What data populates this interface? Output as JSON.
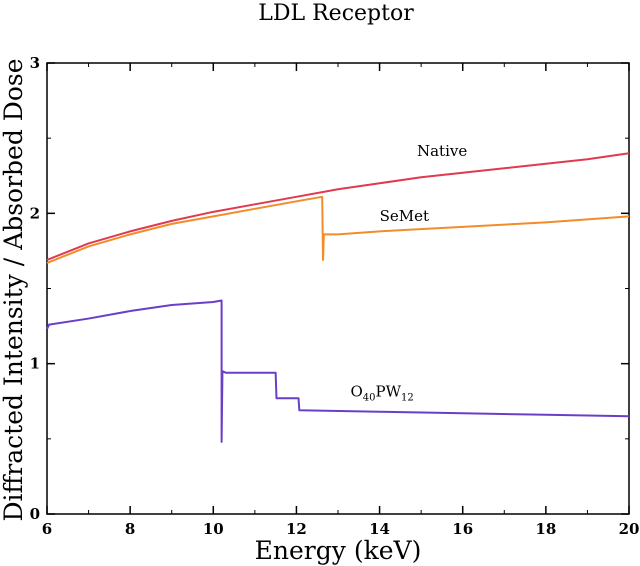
{
  "chart_data": {
    "type": "line",
    "title": "LDL Receptor",
    "xlabel": "Energy (keV)",
    "ylabel": "Diffracted Intensity / Absorbed Dose",
    "xlim": [
      6,
      20
    ],
    "ylim": [
      0,
      3
    ],
    "xticks": [
      "6",
      "8",
      "10",
      "12",
      "14",
      "16",
      "18",
      "20"
    ],
    "yticks": [
      "0",
      "1",
      "2",
      "3"
    ],
    "grid": false,
    "legend": "none",
    "series": [
      {
        "name": "Native",
        "color": "#e03a4e",
        "x": [
          6.0,
          7.0,
          8.0,
          9.0,
          10.0,
          11.0,
          12.0,
          13.0,
          14.0,
          15.0,
          16.0,
          17.0,
          18.0,
          19.0,
          20.0
        ],
        "y": [
          1.69,
          1.8,
          1.88,
          1.95,
          2.01,
          2.06,
          2.11,
          2.16,
          2.2,
          2.24,
          2.27,
          2.3,
          2.33,
          2.36,
          2.4
        ]
      },
      {
        "name": "SeMet",
        "color": "#f28c28",
        "x": [
          6.0,
          7.0,
          8.0,
          9.0,
          10.0,
          11.0,
          12.0,
          12.62,
          12.64,
          12.66,
          13.0,
          14.0,
          16.0,
          18.0,
          20.0
        ],
        "y": [
          1.67,
          1.78,
          1.86,
          1.93,
          1.98,
          2.03,
          2.08,
          2.11,
          1.69,
          1.86,
          1.86,
          1.88,
          1.91,
          1.94,
          1.98
        ]
      },
      {
        "name": "O40PW12",
        "color": "#6a3fc8",
        "x": [
          6.0,
          6.05,
          7.0,
          8.0,
          9.0,
          10.0,
          10.2,
          10.2,
          10.22,
          10.3,
          11.5,
          11.52,
          12.05,
          12.07,
          14.0,
          16.0,
          18.0,
          20.0
        ],
        "y": [
          1.23,
          1.26,
          1.3,
          1.35,
          1.39,
          1.41,
          1.42,
          0.48,
          0.95,
          0.94,
          0.94,
          0.77,
          0.77,
          0.69,
          0.68,
          0.67,
          0.66,
          0.65
        ]
      }
    ],
    "annotations": [
      {
        "text": "Native",
        "x": 14.9,
        "y": 2.38
      },
      {
        "text": "SeMet",
        "x": 14.0,
        "y": 1.95
      },
      {
        "text": "O",
        "sub1": "40",
        "mid": "PW",
        "sub2": "12",
        "x": 13.3,
        "y": 0.78
      }
    ]
  }
}
